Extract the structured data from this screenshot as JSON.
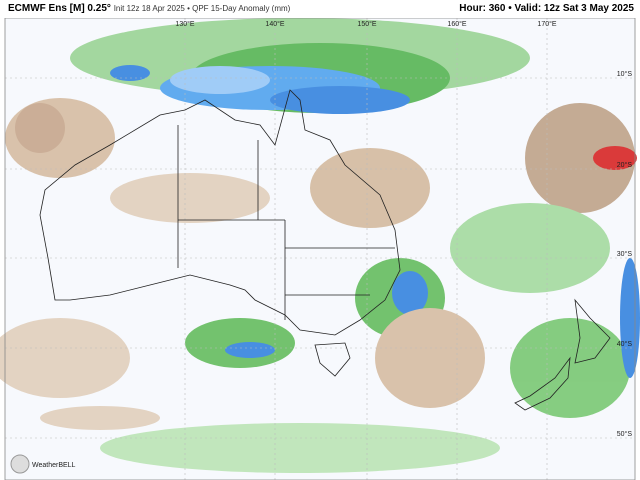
{
  "header": {
    "title": "ECMWF Ens [M] 0.25°",
    "subtitle": "Init 12z 18 Apr 2025 • QPF 15-Day Anomaly (mm)",
    "valid_info": "Hour: 360 • Valid: 12z Sat 3 May 2025"
  },
  "map": {
    "lon_labels": [
      "130°E",
      "140°E",
      "150°E",
      "160°E",
      "170°E"
    ],
    "lat_labels": [
      "10°S",
      "20°S",
      "30°S",
      "40°S",
      "50°S"
    ]
  },
  "logo": "WeatherBELL"
}
